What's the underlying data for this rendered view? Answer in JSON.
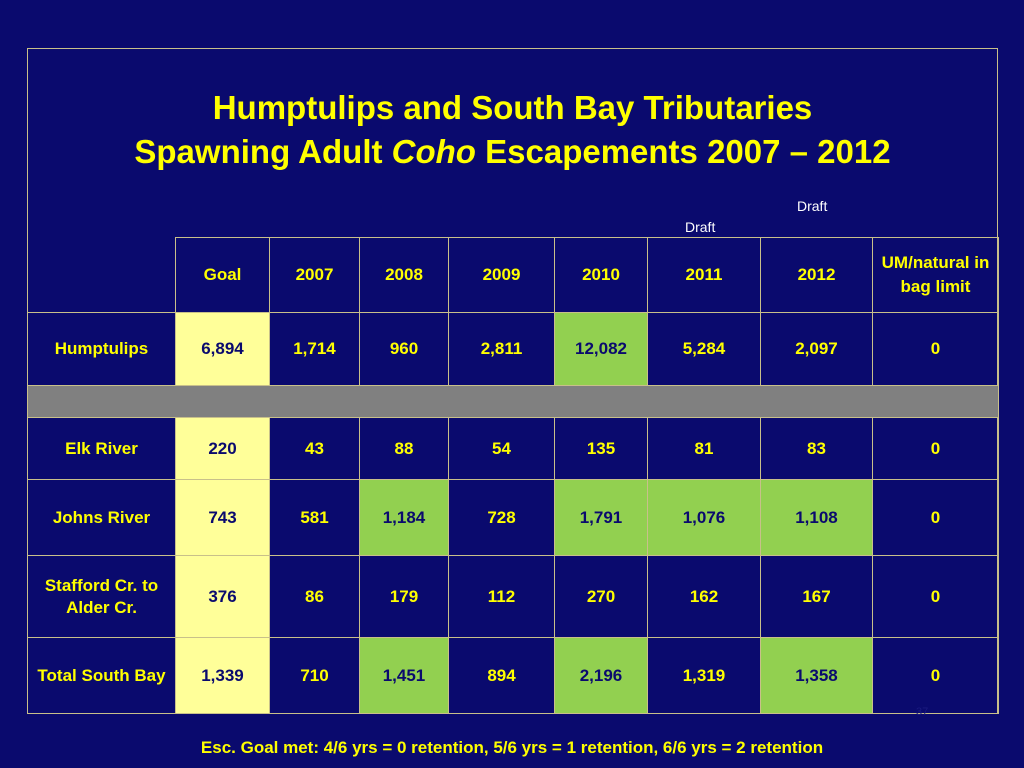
{
  "title": {
    "line1": "Humptulips and South Bay Tributaries",
    "line2_pre": "Spawning Adult ",
    "line2_italic": "Coho",
    "line2_post": " Escapements 2007 – 2012"
  },
  "draft_labels": {
    "y2012": "Draft",
    "y2011": "Draft"
  },
  "table": {
    "headers": [
      "Goal",
      "2007",
      "2008",
      "2009",
      "2010",
      "2011",
      "2012",
      "UM/natural in bag limit"
    ],
    "rows": {
      "humptulips": {
        "label": "Humptulips",
        "values": [
          "6,894",
          "1,714",
          "960",
          "2,811",
          "12,082",
          "5,284",
          "2,097",
          "0"
        ]
      },
      "elk": {
        "label": "Elk River",
        "values": [
          "220",
          "43",
          "88",
          "54",
          "135",
          "81",
          "83",
          "0"
        ]
      },
      "johns": {
        "label": "Johns River",
        "values": [
          "743",
          "581",
          "1,184",
          "728",
          "1,791",
          "1,076",
          "1,108",
          "0"
        ]
      },
      "stafford": {
        "label": "Stafford Cr. to Alder Cr.",
        "values": [
          "376",
          "86",
          "179",
          "112",
          "270",
          "162",
          "167",
          "0"
        ]
      },
      "total": {
        "label": "Total South Bay",
        "values": [
          "1,339",
          "710",
          "1,451",
          "894",
          "2,196",
          "1,319",
          "1,358",
          "0"
        ]
      }
    }
  },
  "colors": {
    "background": "#0a0a6e",
    "text": "#ffff00",
    "goal_cell": "#ffff99",
    "goal_met_cell": "#92d050",
    "separator": "#808080"
  },
  "slide_number": "37",
  "footer": "Esc. Goal met: 4/6 yrs = 0 retention, 5/6 yrs = 1 retention, 6/6 yrs = 2 retention"
}
